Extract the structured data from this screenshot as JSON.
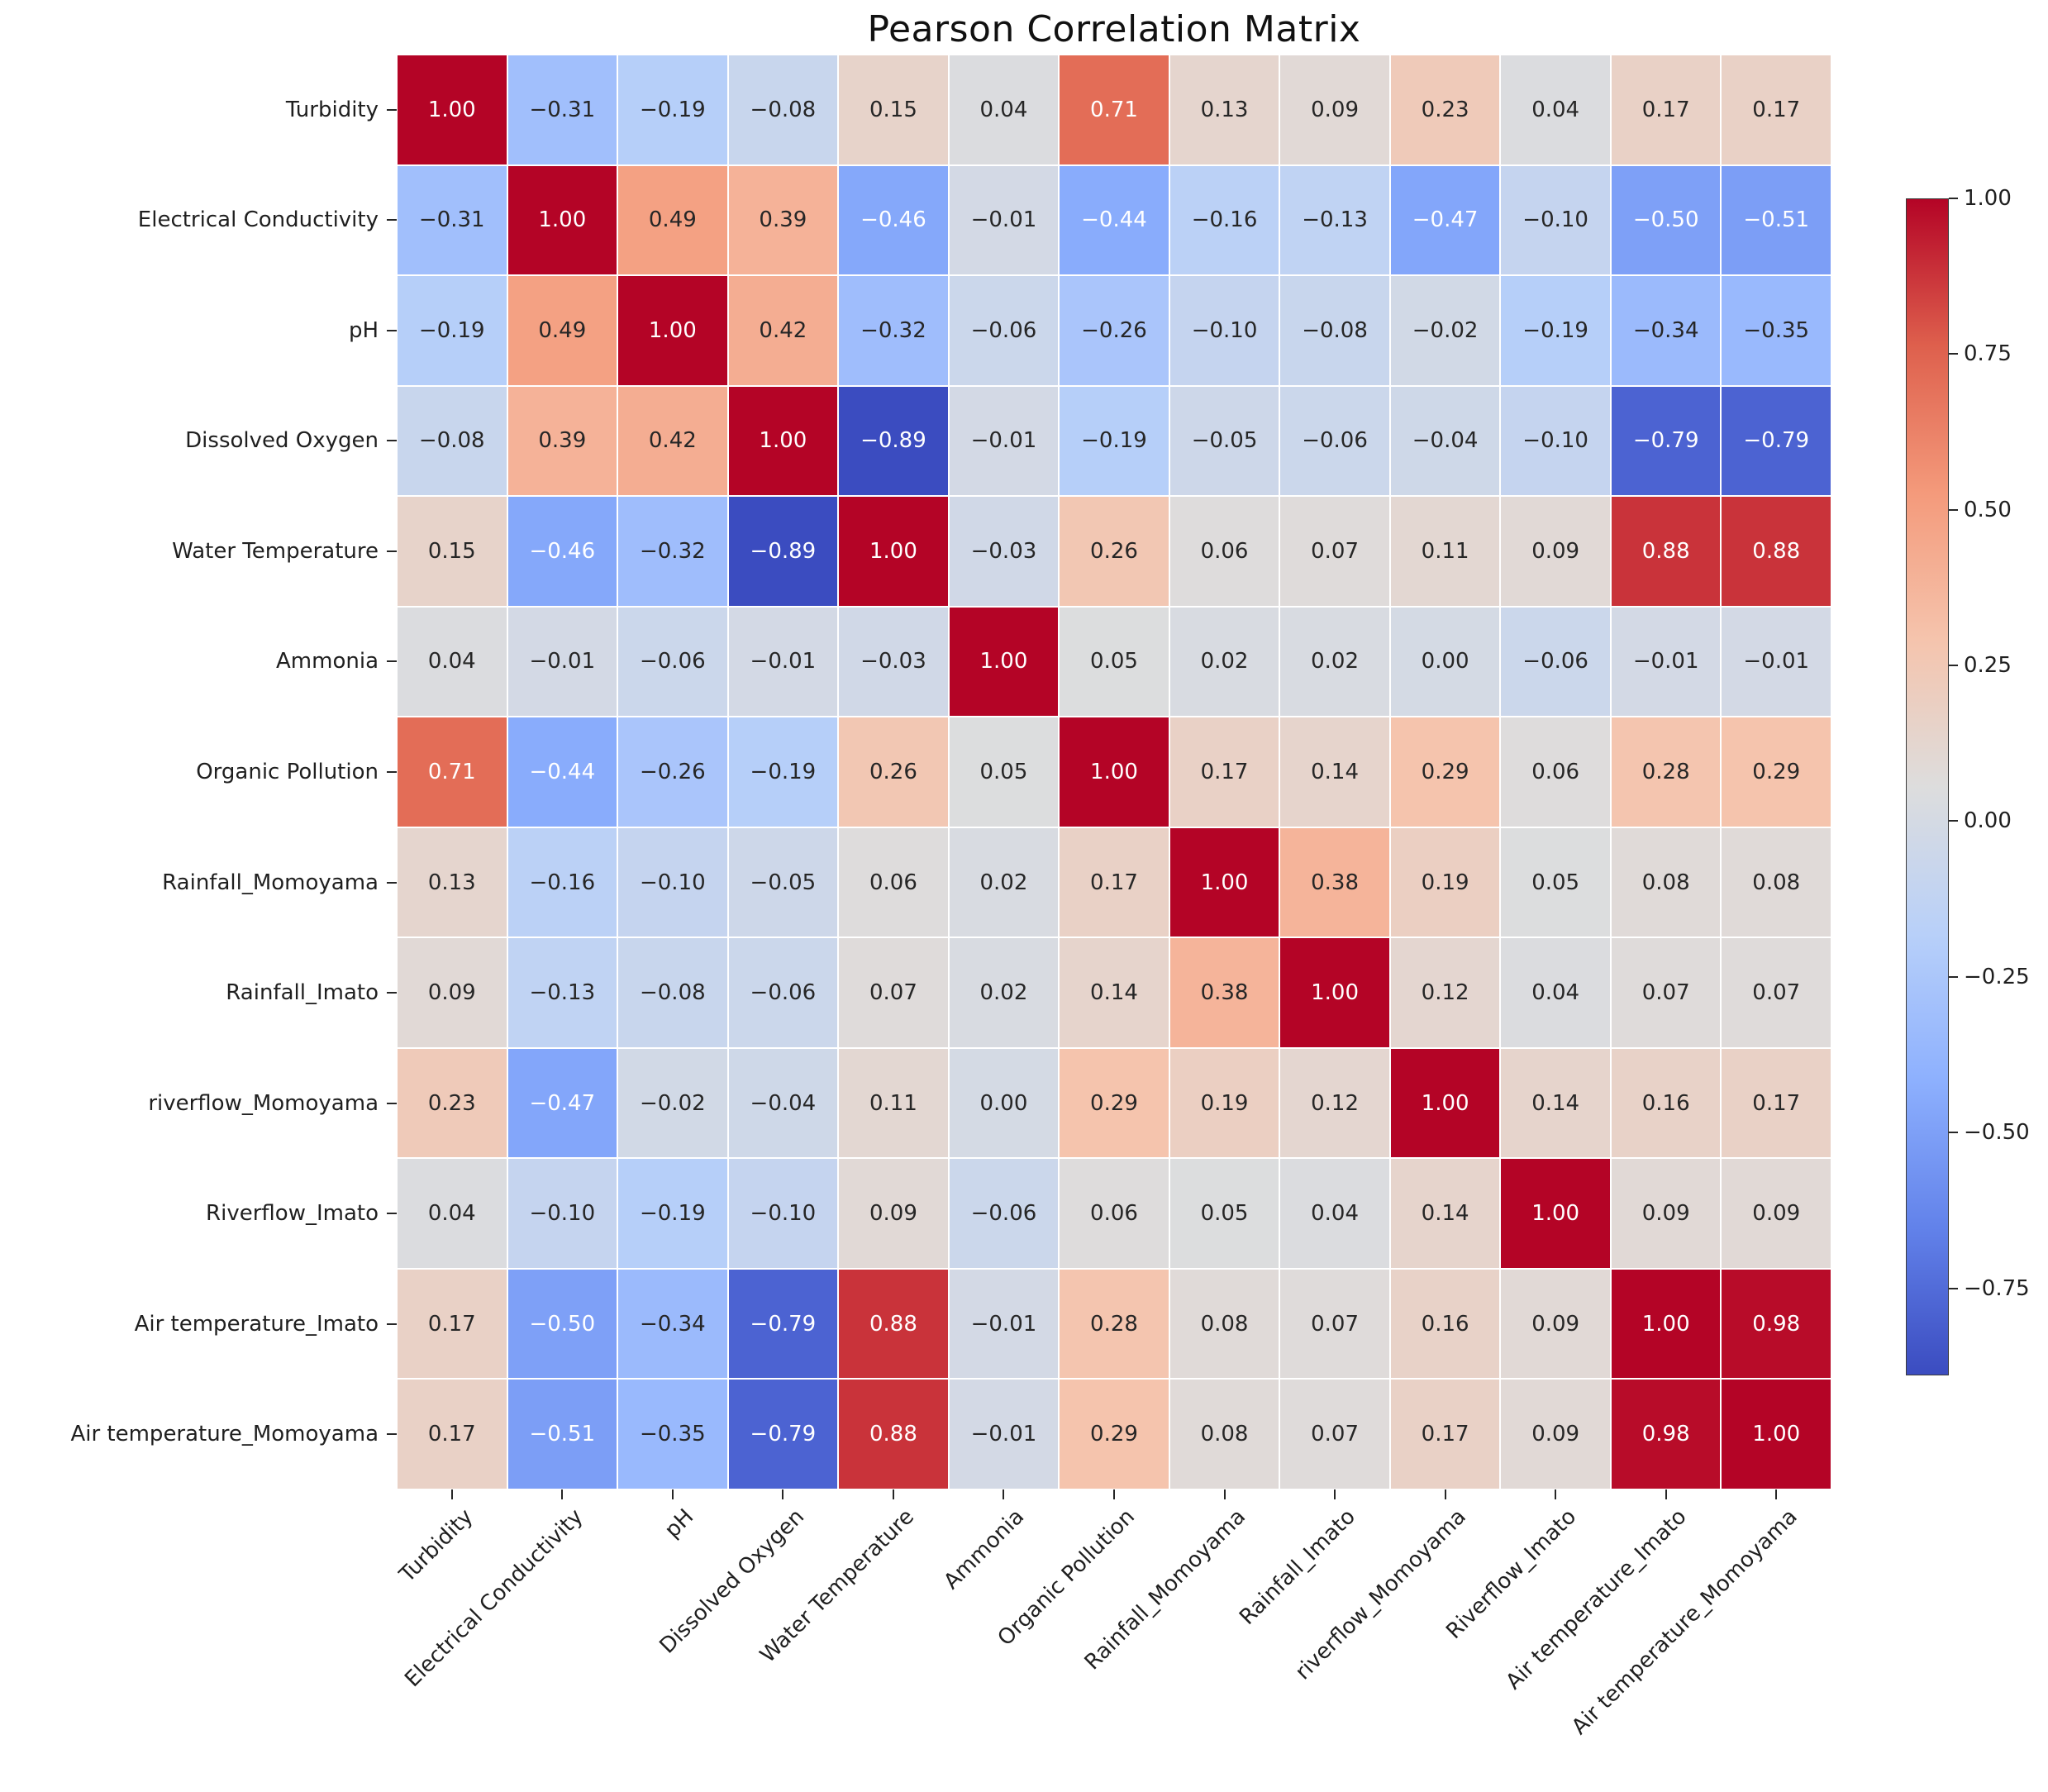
{
  "title": "Pearson Correlation Matrix",
  "chart_data": {
    "type": "heatmap",
    "title": "Pearson Correlation Matrix",
    "colormap": "coolwarm",
    "vmin": -0.89,
    "vmax": 1.0,
    "annotation_format": "0.00",
    "grid": false,
    "legend_position": "colorbar-right",
    "colors": {
      "low": "#3b4cc0",
      "mid": "#dddddd",
      "high": "#b40426",
      "line": "#ffffff",
      "text_dark": "#262626",
      "text_light": "#ffffff"
    },
    "categories": [
      "Turbidity",
      "Electrical Conductivity",
      "pH",
      "Dissolved Oxygen",
      "Water Temperature",
      "Ammonia",
      "Organic Pollution",
      "Rainfall_Momoyama",
      "Rainfall_Imato",
      "riverflow_Momoyama",
      "Riverflow_Imato",
      "Air temperature_Imato",
      "Air temperature_Momoyama"
    ],
    "matrix": [
      [
        1.0,
        -0.31,
        -0.19,
        -0.08,
        0.15,
        0.04,
        0.71,
        0.13,
        0.09,
        0.23,
        0.04,
        0.17,
        0.17
      ],
      [
        -0.31,
        1.0,
        0.49,
        0.39,
        -0.46,
        -0.01,
        -0.44,
        -0.16,
        -0.13,
        -0.47,
        -0.1,
        -0.5,
        -0.51
      ],
      [
        -0.19,
        0.49,
        1.0,
        0.42,
        -0.32,
        -0.06,
        -0.26,
        -0.1,
        -0.08,
        -0.02,
        -0.19,
        -0.34,
        -0.35
      ],
      [
        -0.08,
        0.39,
        0.42,
        1.0,
        -0.89,
        -0.01,
        -0.19,
        -0.05,
        -0.06,
        -0.04,
        -0.1,
        -0.79,
        -0.79
      ],
      [
        0.15,
        -0.46,
        -0.32,
        -0.89,
        1.0,
        -0.03,
        0.26,
        0.06,
        0.07,
        0.11,
        0.09,
        0.88,
        0.88
      ],
      [
        0.04,
        -0.01,
        -0.06,
        -0.01,
        -0.03,
        1.0,
        0.05,
        0.02,
        0.02,
        0.0,
        -0.06,
        -0.01,
        -0.01
      ],
      [
        0.71,
        -0.44,
        -0.26,
        -0.19,
        0.26,
        0.05,
        1.0,
        0.17,
        0.14,
        0.29,
        0.06,
        0.28,
        0.29
      ],
      [
        0.13,
        -0.16,
        -0.1,
        -0.05,
        0.06,
        0.02,
        0.17,
        1.0,
        0.38,
        0.19,
        0.05,
        0.08,
        0.08
      ],
      [
        0.09,
        -0.13,
        -0.08,
        -0.06,
        0.07,
        0.02,
        0.14,
        0.38,
        1.0,
        0.12,
        0.04,
        0.07,
        0.07
      ],
      [
        0.23,
        -0.47,
        -0.02,
        -0.04,
        0.11,
        0.0,
        0.29,
        0.19,
        0.12,
        1.0,
        0.14,
        0.16,
        0.17
      ],
      [
        0.04,
        -0.1,
        -0.19,
        -0.1,
        0.09,
        -0.06,
        0.06,
        0.05,
        0.04,
        0.14,
        1.0,
        0.09,
        0.09
      ],
      [
        0.17,
        -0.5,
        -0.34,
        -0.79,
        0.88,
        -0.01,
        0.28,
        0.08,
        0.07,
        0.16,
        0.09,
        1.0,
        0.98
      ],
      [
        0.17,
        -0.51,
        -0.35,
        -0.79,
        0.88,
        -0.01,
        0.29,
        0.08,
        0.07,
        0.17,
        0.09,
        0.98,
        1.0
      ]
    ],
    "colorbar_ticks": [
      1.0,
      0.75,
      0.5,
      0.25,
      0.0,
      -0.25,
      -0.5,
      -0.75
    ]
  }
}
